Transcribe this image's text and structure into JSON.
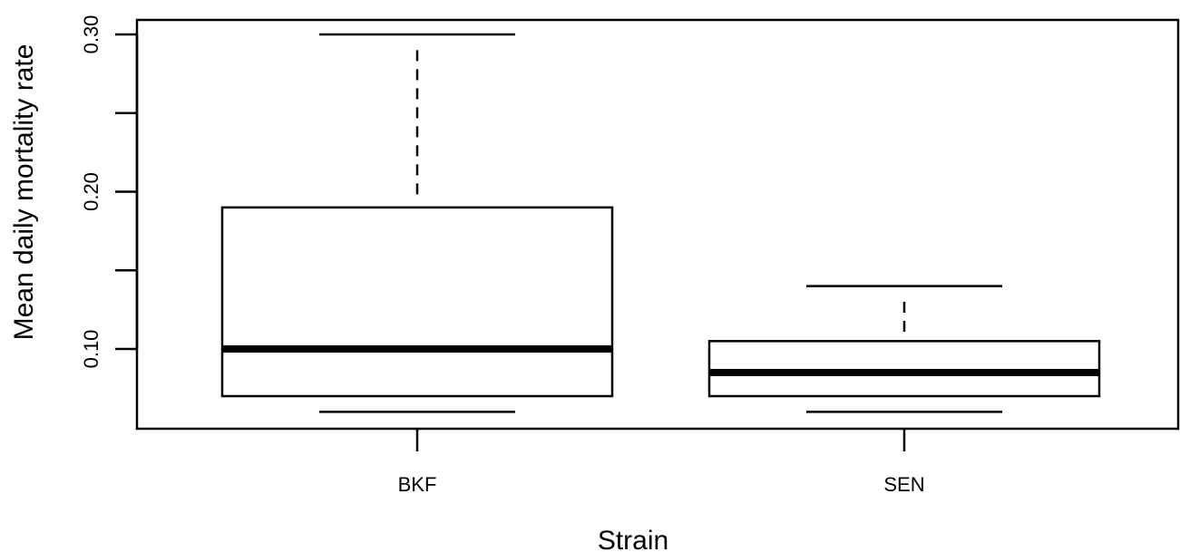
{
  "chart_data": {
    "type": "box",
    "xlabel": "Strain",
    "ylabel": "Mean daily mortality rate",
    "categories": [
      "BKF",
      "SEN"
    ],
    "boxes": [
      {
        "name": "BKF",
        "whisker_low": 0.06,
        "q1": 0.07,
        "median": 0.1,
        "q3": 0.19,
        "whisker_high": 0.3,
        "whisker_high_dashed_end": 0.29,
        "whisker_high_dashed_start": 0.195
      },
      {
        "name": "SEN",
        "whisker_low": 0.06,
        "q1": 0.07,
        "median": 0.085,
        "q3": 0.105,
        "whisker_high": 0.14,
        "whisker_high_dashed_end": 0.13,
        "whisker_high_dashed_start": 0.109
      }
    ],
    "yticks": [
      0.1,
      0.15,
      0.2,
      0.25,
      0.3
    ],
    "ytick_labels": [
      "0.10",
      "",
      "0.20",
      "",
      "0.30"
    ],
    "ylim": [
      0.05,
      0.31
    ],
    "grid": false,
    "legend": "none",
    "colors": {
      "stroke": "#000000",
      "box_fill": "#ffffff"
    }
  }
}
